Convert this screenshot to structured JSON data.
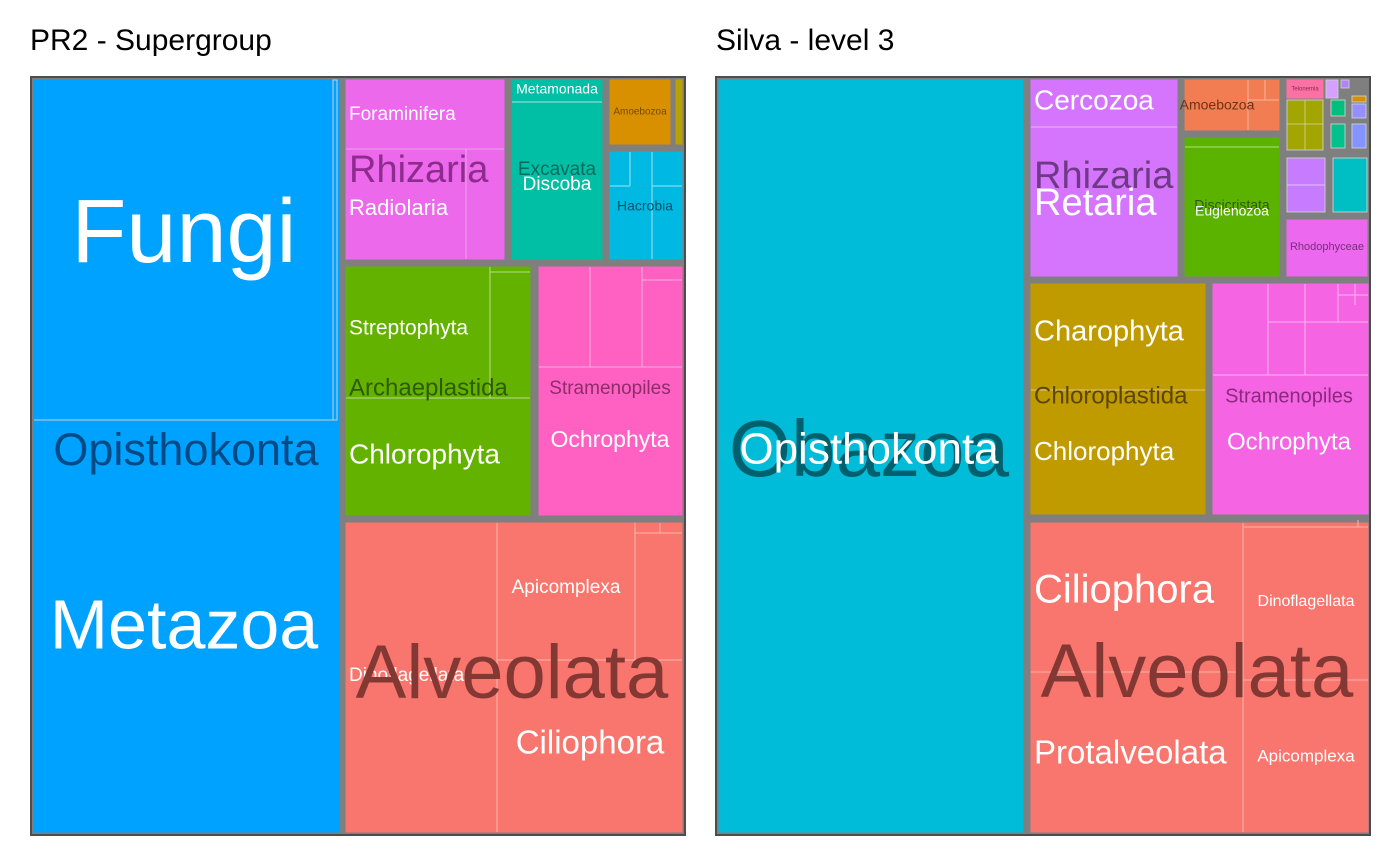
{
  "chart_data": [
    {
      "type": "treemap",
      "title": "PR2 - Supergroup",
      "groups": [
        {
          "name": "Opisthokonta",
          "color": "#00a2ff",
          "subgroups": [
            {
              "name": "Fungi",
              "value": 15.1,
              "children": [
                14.8,
                0.15
              ]
            },
            {
              "name": "Metazoa",
              "value": 15.6
            }
          ]
        },
        {
          "name": "Rhizaria",
          "color": "#ec69ec",
          "subgroups": [
            {
              "name": "Foraminifera",
              "value": 1.1
            },
            {
              "name": "Radiolaria",
              "value": 1.5
            }
          ]
        },
        {
          "name": "Excavata",
          "color": "#00bfa4",
          "subgroups": [
            {
              "name": "Metamonada",
              "value": 0.2
            },
            {
              "name": "Discoba",
              "value": 1.6
            }
          ]
        },
        {
          "name": "Amoebozoa",
          "color": "#d89000",
          "subgroups": [
            {
              "name": "",
              "value": 0.4
            }
          ]
        },
        {
          "name": "Hacrobia",
          "color": "#00b9e3",
          "subgroups": [
            {
              "name": "",
              "value": 0.6
            },
            {
              "name": "",
              "value": 0.4
            }
          ]
        },
        {
          "name": "Archaeplastida",
          "color": "#64b200",
          "subgroups": [
            {
              "name": "Streptophyta",
              "value": 3.0
            },
            {
              "name": "Chlorophyta",
              "value": 3.5
            }
          ]
        },
        {
          "name": "Stramenopiles",
          "color": "#ff61c3",
          "subgroups": [
            {
              "name": "",
              "value": 0.6
            },
            {
              "name": "",
              "value": 0.5
            },
            {
              "name": "Ochrophyta",
              "value": 2.6
            }
          ]
        },
        {
          "name": "Alveolata",
          "color": "#f8766d",
          "subgroups": [
            {
              "name": "Dinoflagellata",
              "value": 6.0
            },
            {
              "name": "Apicomplexa",
              "value": 3.6
            },
            {
              "name": "Ciliophora",
              "value": 4.4
            }
          ]
        }
      ]
    },
    {
      "type": "treemap",
      "title": "Silva - level 3",
      "groups": [
        {
          "name": "Opisthokonta",
          "sublabel": "Obazoa",
          "color": "#00bcd8",
          "subgroups": [
            {
              "name": "",
              "value": 29
            }
          ]
        },
        {
          "name": "Rhizaria",
          "sublabel": "Retaria",
          "color": "#d575fe",
          "subgroups": [
            {
              "name": "Cercozoa",
              "value": 1.5
            },
            {
              "name": "",
              "value": 4.0
            }
          ]
        },
        {
          "name": "Amoebozoa",
          "color": "#f27d52",
          "subgroups": [
            {
              "name": "",
              "value": 1.0
            }
          ]
        },
        {
          "name": "Discicristata",
          "sublabel": "Euglenozoa",
          "color": "#5bb300",
          "subgroups": [
            {
              "name": "",
              "value": 2.3
            }
          ]
        },
        {
          "name": "Telonemia",
          "color": "#fc71a4",
          "subgroups": [
            {
              "name": "",
              "value": 0.1
            }
          ]
        },
        {
          "name": "Rhodophyceae",
          "color": "#ec69ef",
          "subgroups": [
            {
              "name": "",
              "value": 0.6
            }
          ]
        },
        {
          "name": "Chloroplastida",
          "color": "#c09b00",
          "subgroups": [
            {
              "name": "Charophyta",
              "value": 3.0
            },
            {
              "name": "Chlorophyta",
              "value": 3.4
            }
          ]
        },
        {
          "name": "Stramenopiles",
          "color": "#f564e3",
          "subgroups": [
            {
              "name": "",
              "value": 1.2
            },
            {
              "name": "",
              "value": 0.8
            },
            {
              "name": "Ochrophyta",
              "value": 2.9
            }
          ]
        },
        {
          "name": "Alveolata",
          "color": "#f8766d",
          "subgroups": [
            {
              "name": "Ciliophora",
              "value": 6.0
            },
            {
              "name": "Protalveolata",
              "value": 3.9
            },
            {
              "name": "Dinoflagellata",
              "value": 5.0
            },
            {
              "name": "Apicomplexa",
              "value": 4.5
            }
          ]
        }
      ]
    }
  ]
}
